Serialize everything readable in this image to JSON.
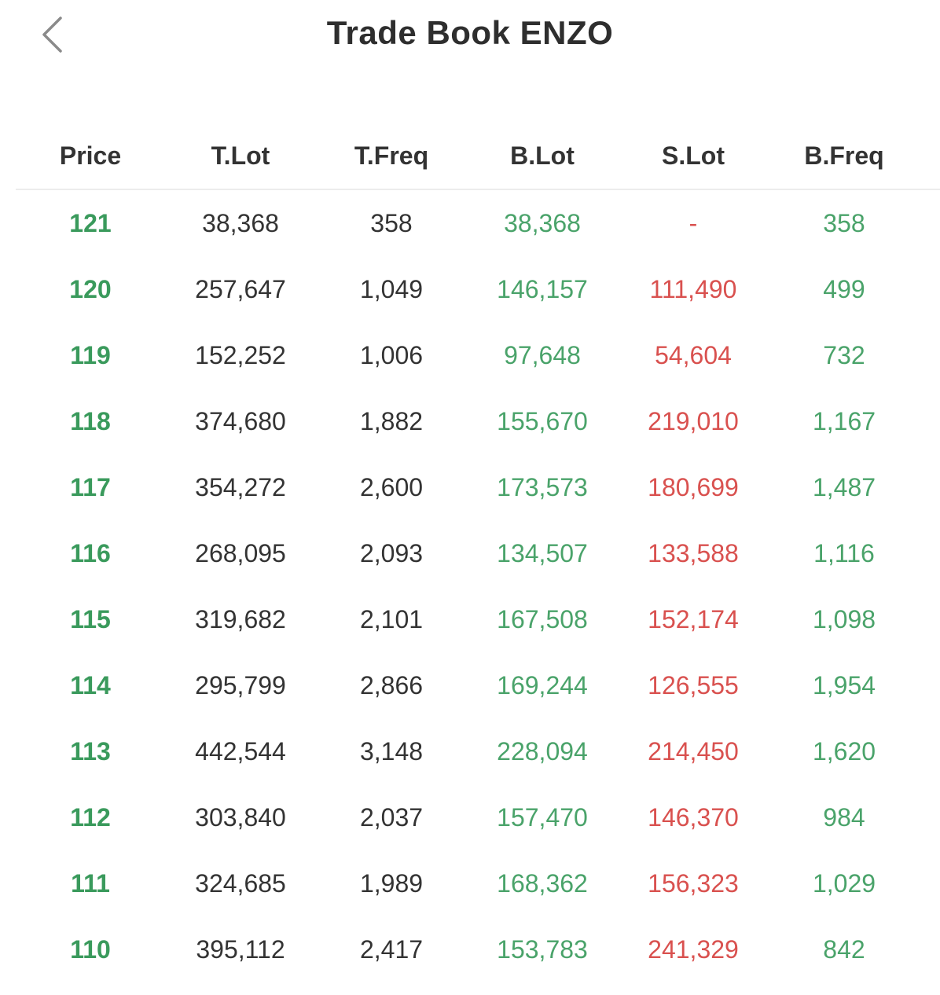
{
  "header": {
    "title": "Trade Book ENZO",
    "back_icon": "chevron-left-icon"
  },
  "colors": {
    "price": "#3a9a5c",
    "buy": "#4aa36a",
    "sell": "#d9514f",
    "neutral": "#333333"
  },
  "table": {
    "columns": [
      "Price",
      "T.Lot",
      "T.Freq",
      "B.Lot",
      "S.Lot",
      "B.Freq"
    ],
    "rows": [
      [
        "121",
        "38,368",
        "358",
        "38,368",
        "-",
        "358"
      ],
      [
        "120",
        "257,647",
        "1,049",
        "146,157",
        "111,490",
        "499"
      ],
      [
        "119",
        "152,252",
        "1,006",
        "97,648",
        "54,604",
        "732"
      ],
      [
        "118",
        "374,680",
        "1,882",
        "155,670",
        "219,010",
        "1,167"
      ],
      [
        "117",
        "354,272",
        "2,600",
        "173,573",
        "180,699",
        "1,487"
      ],
      [
        "116",
        "268,095",
        "2,093",
        "134,507",
        "133,588",
        "1,116"
      ],
      [
        "115",
        "319,682",
        "2,101",
        "167,508",
        "152,174",
        "1,098"
      ],
      [
        "114",
        "295,799",
        "2,866",
        "169,244",
        "126,555",
        "1,954"
      ],
      [
        "113",
        "442,544",
        "3,148",
        "228,094",
        "214,450",
        "1,620"
      ],
      [
        "112",
        "303,840",
        "2,037",
        "157,470",
        "146,370",
        "984"
      ],
      [
        "111",
        "324,685",
        "1,989",
        "168,362",
        "156,323",
        "1,029"
      ],
      [
        "110",
        "395,112",
        "2,417",
        "153,783",
        "241,329",
        "842"
      ]
    ]
  }
}
